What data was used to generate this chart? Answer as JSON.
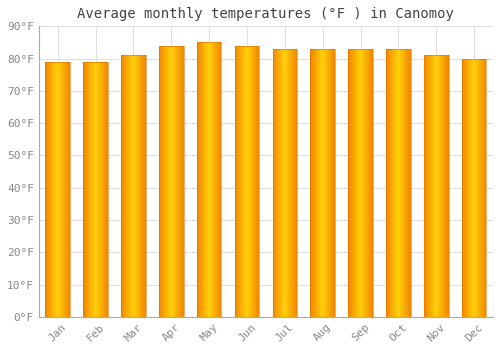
{
  "title": "Average monthly temperatures (°F ) in Canomoy",
  "months": [
    "Jan",
    "Feb",
    "Mar",
    "Apr",
    "May",
    "Jun",
    "Jul",
    "Aug",
    "Sep",
    "Oct",
    "Nov",
    "Dec"
  ],
  "values": [
    79,
    79,
    81,
    84,
    85,
    84,
    83,
    83,
    83,
    83,
    81,
    80
  ],
  "ylim": [
    0,
    90
  ],
  "yticks": [
    0,
    10,
    20,
    30,
    40,
    50,
    60,
    70,
    80,
    90
  ],
  "ytick_labels": [
    "0°F",
    "10°F",
    "20°F",
    "30°F",
    "40°F",
    "50°F",
    "60°F",
    "70°F",
    "80°F",
    "90°F"
  ],
  "bar_color_center": "#FFD060",
  "bar_color_edge": "#F0860A",
  "background_color": "#FFFFFF",
  "plot_bg_color": "#FFFFFF",
  "grid_color": "#DDDDDD",
  "title_fontsize": 10,
  "tick_fontsize": 8,
  "bar_width": 0.65,
  "title_color": "#444444",
  "tick_color": "#888888"
}
